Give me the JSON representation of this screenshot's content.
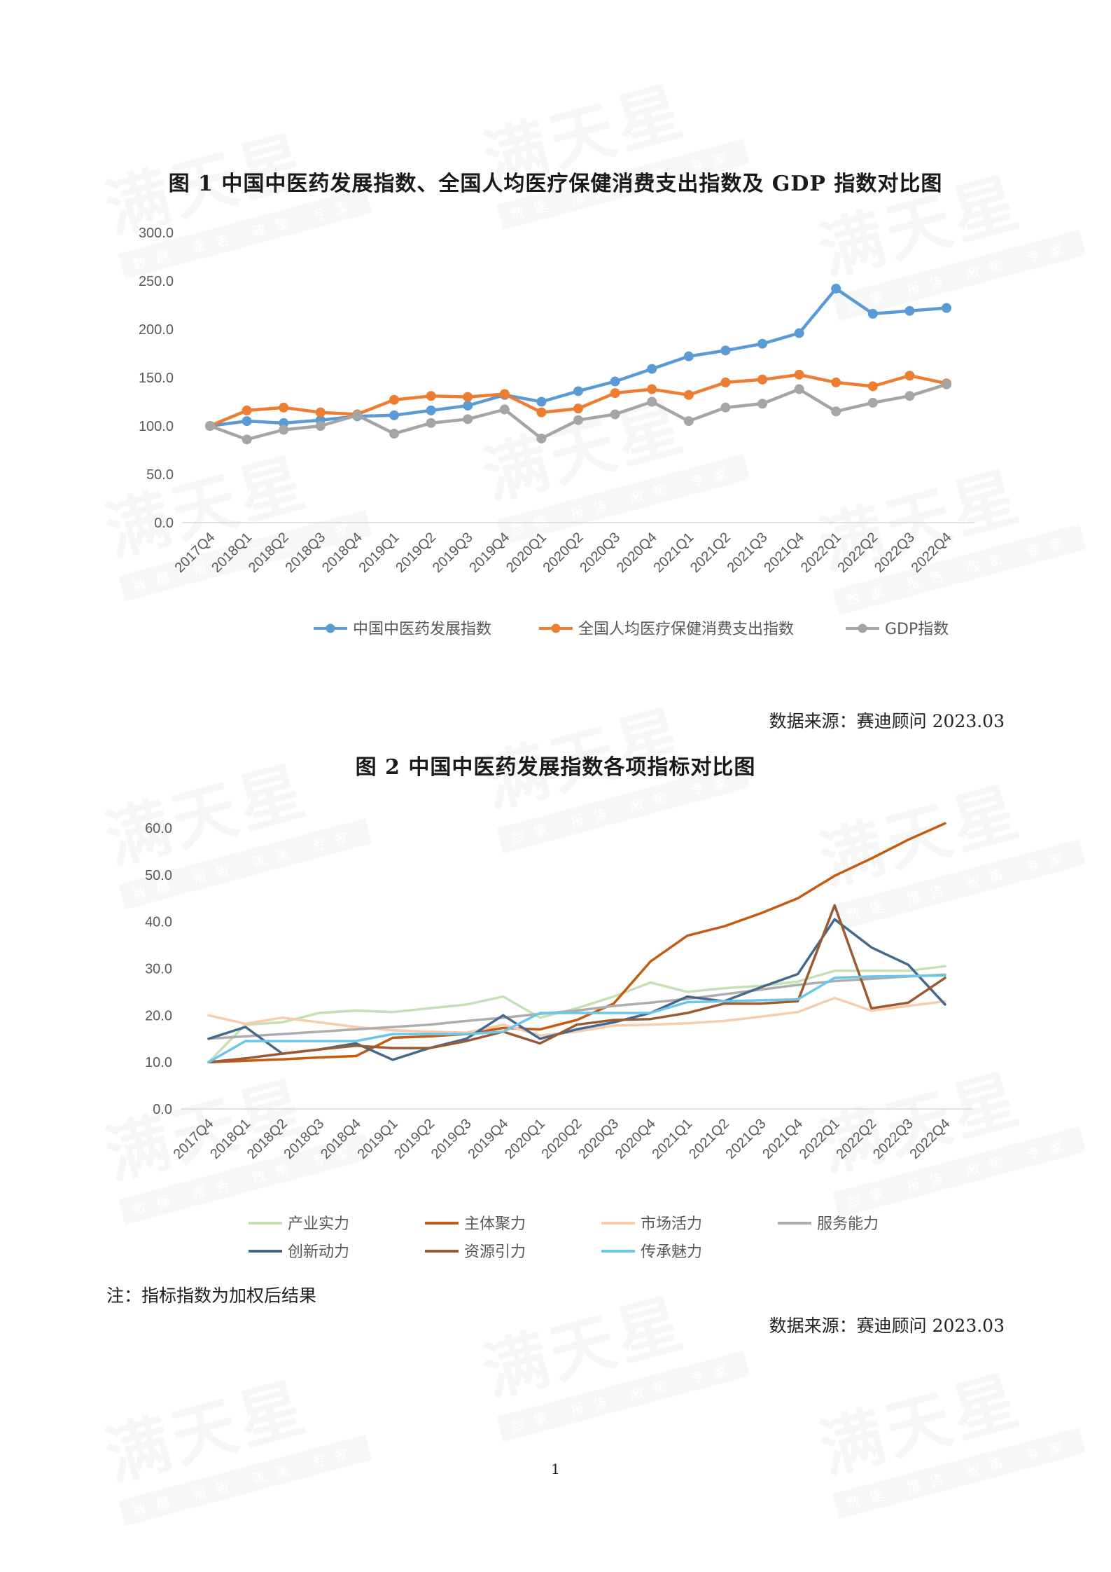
{
  "watermark": {
    "brand": "满天星",
    "tagline": "数据 报告 政策 专家"
  },
  "chart_data": [
    {
      "type": "line",
      "title": "图 1 中国中医药发展指数、全国人均医疗保健消费支出指数及 GDP 指数对比图",
      "categories": [
        "2017Q4",
        "2018Q1",
        "2018Q2",
        "2018Q3",
        "2018Q4",
        "2019Q1",
        "2019Q2",
        "2019Q3",
        "2019Q4",
        "2020Q1",
        "2020Q2",
        "2020Q3",
        "2020Q4",
        "2021Q1",
        "2021Q2",
        "2021Q3",
        "2021Q4",
        "2022Q1",
        "2022Q2",
        "2022Q3",
        "2022Q4"
      ],
      "yticks": [
        "0.0",
        "50.0",
        "100.0",
        "150.0",
        "200.0",
        "250.0",
        "300.0"
      ],
      "ylim": [
        0,
        300
      ],
      "grid": false,
      "legend": "bottom",
      "series": [
        {
          "name": "中国中医药发展指数",
          "color": "#5B9BD5",
          "values": [
            100,
            105,
            103,
            106,
            110,
            111,
            116,
            121,
            132,
            125,
            136,
            146,
            159,
            172,
            178,
            185,
            196,
            242,
            216,
            219,
            222
          ]
        },
        {
          "name": "全国人均医疗保健消费支出指数",
          "color": "#ED7D31",
          "values": [
            100,
            116,
            119,
            114,
            112,
            127,
            131,
            130,
            133,
            114,
            118,
            134,
            138,
            132,
            145,
            148,
            153,
            145,
            141,
            152,
            144
          ]
        },
        {
          "name": "GDP指数",
          "color": "#A5A5A5",
          "values": [
            100,
            86,
            96,
            100,
            111,
            92,
            103,
            107,
            117,
            87,
            106,
            112,
            125,
            105,
            119,
            123,
            138,
            115,
            124,
            131,
            143
          ]
        }
      ],
      "source": "数据来源：赛迪顾问 2023.03"
    },
    {
      "type": "line",
      "title": "图 2 中国中医药发展指数各项指标对比图",
      "categories": [
        "2017Q4",
        "2018Q1",
        "2018Q2",
        "2018Q3",
        "2018Q4",
        "2019Q1",
        "2019Q2",
        "2019Q3",
        "2019Q4",
        "2020Q1",
        "2020Q2",
        "2020Q3",
        "2020Q4",
        "2021Q1",
        "2021Q2",
        "2021Q3",
        "2021Q4",
        "2022Q1",
        "2022Q2",
        "2022Q3",
        "2022Q4"
      ],
      "yticks": [
        "0.0",
        "10.0",
        "20.0",
        "30.0",
        "40.0",
        "50.0",
        "60.0"
      ],
      "ylim": [
        0,
        60
      ],
      "grid": false,
      "legend": "bottom",
      "series": [
        {
          "name": "产业实力",
          "color": "#C5E0B4",
          "values": [
            10.0,
            18.0,
            18.5,
            20.5,
            21.0,
            20.7,
            21.5,
            22.3,
            24.0,
            19.5,
            21.5,
            24.0,
            27.0,
            25.0,
            25.8,
            26.3,
            27.2,
            29.5,
            29.5,
            29.5,
            30.5
          ]
        },
        {
          "name": "主体聚力",
          "color": "#C55A11",
          "values": [
            10.0,
            10.3,
            10.6,
            11.0,
            11.3,
            15.2,
            15.5,
            16.0,
            17.3,
            17.0,
            19.0,
            22.5,
            31.5,
            37.0,
            39.0,
            41.8,
            45.0,
            49.8,
            53.5,
            57.5,
            61.0
          ]
        },
        {
          "name": "市场活力",
          "color": "#F8CBAD",
          "values": [
            20.0,
            18.2,
            19.5,
            18.5,
            17.5,
            16.8,
            16.5,
            16.3,
            18.0,
            15.7,
            16.5,
            17.8,
            18.0,
            18.3,
            18.8,
            19.7,
            20.7,
            23.7,
            21.0,
            22.0,
            23.0
          ]
        },
        {
          "name": "服务能力",
          "color": "#ADADAD",
          "values": [
            15.0,
            15.5,
            16.0,
            16.5,
            17.0,
            17.5,
            18.0,
            18.8,
            19.5,
            20.3,
            21.0,
            22.0,
            22.7,
            23.5,
            24.5,
            25.5,
            26.5,
            27.3,
            27.8,
            28.3,
            28.7
          ]
        },
        {
          "name": "创新动力",
          "color": "#44698D",
          "values": [
            15.0,
            17.5,
            11.8,
            12.7,
            14.0,
            10.5,
            13.0,
            15.0,
            20.0,
            15.0,
            17.0,
            18.5,
            20.5,
            24.0,
            23.0,
            26.0,
            28.8,
            40.5,
            34.5,
            30.8,
            22.3
          ]
        },
        {
          "name": "资源引力",
          "color": "#9B5B32",
          "values": [
            10.0,
            10.8,
            11.8,
            12.7,
            13.5,
            13.0,
            13.0,
            14.5,
            16.5,
            14.0,
            18.0,
            19.0,
            19.2,
            20.5,
            22.5,
            22.5,
            23.0,
            43.5,
            21.5,
            22.7,
            28.0
          ]
        },
        {
          "name": "传承魅力",
          "color": "#6CC6EA",
          "values": [
            10.0,
            14.5,
            14.5,
            14.5,
            14.5,
            16.0,
            16.0,
            16.0,
            16.5,
            20.5,
            20.5,
            20.5,
            20.5,
            22.8,
            23.0,
            23.2,
            23.4,
            28.0,
            28.3,
            28.4,
            28.5
          ]
        }
      ],
      "note": "注：指标指数为加权后结果",
      "source": "数据来源：赛迪顾问 2023.03"
    }
  ],
  "page_number": "1"
}
